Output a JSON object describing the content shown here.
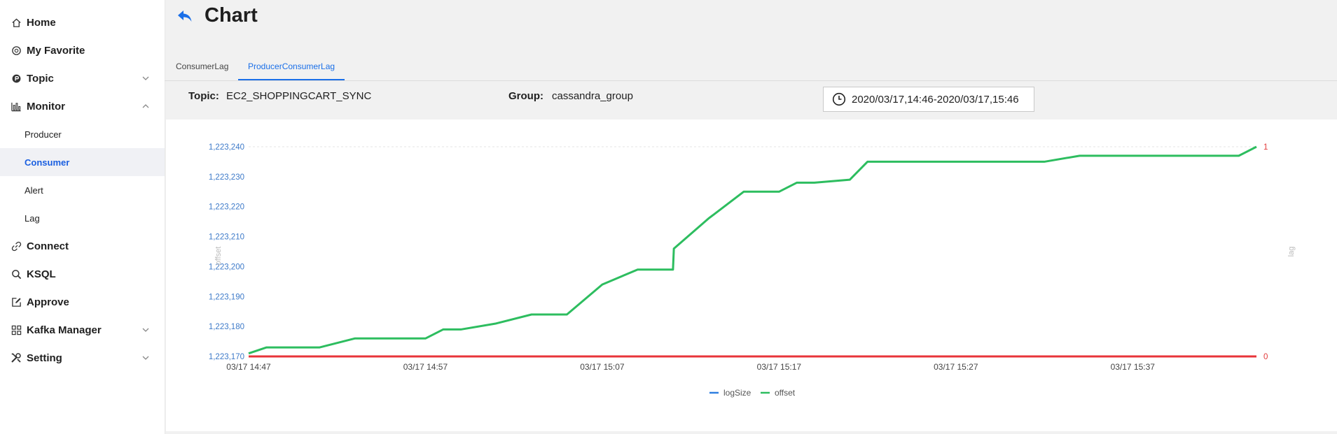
{
  "sidebar": {
    "home": "Home",
    "favorite": "My Favorite",
    "topic": "Topic",
    "monitor": "Monitor",
    "producer": "Producer",
    "consumer": "Consumer",
    "alert": "Alert",
    "lag": "Lag",
    "connect": "Connect",
    "ksql": "KSQL",
    "approve": "Approve",
    "kafka_manager": "Kafka Manager",
    "setting": "Setting"
  },
  "header": {
    "title": "Chart"
  },
  "tabs": {
    "consumer_lag": "ConsumerLag",
    "producer_consumer_lag": "ProducerConsumerLag"
  },
  "info": {
    "topic_label": "Topic:",
    "topic_value": "EC2_SHOPPINGCART_SYNC",
    "group_label": "Group:",
    "group_value": "cassandra_group",
    "range": "2020/03/17,14:46-2020/03/17,15:46"
  },
  "colors": {
    "accent": "#1a6fe8",
    "offset": "#2dbd5f",
    "lag": "#e8343a",
    "logSize": "#2f7fe0"
  },
  "chart_data": {
    "type": "line",
    "y_label": "offset",
    "y2_label": "lag",
    "ylim": [
      1223170,
      1223240
    ],
    "y_ticks": [
      "1,223,170",
      "1,223,180",
      "1,223,190",
      "1,223,200",
      "1,223,210",
      "1,223,220",
      "1,223,230",
      "1,223,240"
    ],
    "y_tick_values": [
      1223170,
      1223180,
      1223190,
      1223200,
      1223210,
      1223220,
      1223230,
      1223240
    ],
    "y2lim": [
      0,
      1
    ],
    "y2_ticks": [
      "0",
      "1"
    ],
    "x_ticks": [
      "03/17 14:47",
      "03/17 14:57",
      "03/17 15:07",
      "03/17 15:17",
      "03/17 15:27",
      "03/17 15:37"
    ],
    "x_tick_minutes": [
      0,
      10,
      20,
      30,
      40,
      50
    ],
    "legend": [
      "logSize",
      "offset"
    ],
    "legend_position": "bottom-center",
    "series": [
      {
        "name": "offset",
        "x": [
          0,
          1,
          4,
          6,
          10,
          11,
          12,
          14,
          16,
          18,
          20,
          22,
          24,
          24.05,
          26,
          28,
          30,
          31,
          32,
          34,
          35,
          40,
          45,
          47,
          50,
          56,
          57
        ],
        "values": [
          1223171,
          1223173,
          1223173,
          1223176,
          1223176,
          1223179,
          1223179,
          1223181,
          1223184,
          1223184,
          1223194,
          1223199,
          1223199,
          1223206,
          1223216,
          1223225,
          1223225,
          1223228,
          1223228,
          1223229,
          1223235,
          1223235,
          1223235,
          1223237,
          1223237,
          1223237,
          1223240
        ]
      },
      {
        "name": "lag",
        "axis": "right",
        "x": [
          0,
          57
        ],
        "values": [
          0,
          0
        ]
      }
    ]
  }
}
